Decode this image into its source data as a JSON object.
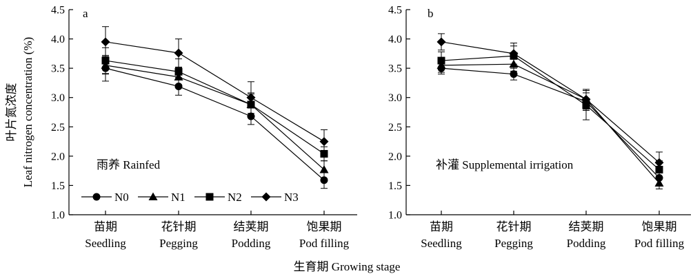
{
  "chart_data": [
    {
      "type": "line",
      "panel_label": "a",
      "annotation": "雨养 Rainfed",
      "categories": [
        "苗期\nSeedling",
        "花针期\nPegging",
        "结荚期\nPodding",
        "饱果期\nPod filling"
      ],
      "ylabel_cn": "叶片氮浓度",
      "ylabel_en": "Leaf nitrogen concentration (%)",
      "ylim": [
        1.0,
        4.5
      ],
      "yticks": [
        "1.0",
        "1.5",
        "2.0",
        "2.5",
        "3.0",
        "3.5",
        "4.0",
        "4.5"
      ],
      "series": [
        {
          "name": "N0",
          "marker": "circle",
          "values": [
            3.5,
            3.19,
            2.68,
            1.59
          ],
          "err": [
            0.22,
            0.15,
            0.14,
            0.14
          ]
        },
        {
          "name": "N1",
          "marker": "triangle",
          "values": [
            3.55,
            3.35,
            2.88,
            1.77
          ],
          "err": [
            0.15,
            0.16,
            0.18,
            0.15
          ]
        },
        {
          "name": "N2",
          "marker": "square",
          "values": [
            3.63,
            3.44,
            2.88,
            2.04
          ],
          "err": [
            0.22,
            0.22,
            0.2,
            0.12
          ]
        },
        {
          "name": "N3",
          "marker": "diamond",
          "values": [
            3.95,
            3.76,
            3.0,
            2.25
          ],
          "err": [
            0.26,
            0.24,
            0.27,
            0.2
          ]
        }
      ]
    },
    {
      "type": "line",
      "panel_label": "b",
      "annotation": "补灌 Supplemental irrigation",
      "categories": [
        "苗期\nSeedling",
        "花针期\nPegging",
        "结荚期\nPodding",
        "饱果期\nPod filling"
      ],
      "ylim": [
        1.0,
        4.5
      ],
      "yticks": [
        "1.0",
        "1.5",
        "2.0",
        "2.5",
        "3.0",
        "3.5",
        "4.0",
        "4.5"
      ],
      "series": [
        {
          "name": "N0",
          "marker": "circle",
          "values": [
            3.5,
            3.4,
            2.93,
            1.63
          ],
          "err": [
            0.1,
            0.1,
            0.15,
            0.12
          ]
        },
        {
          "name": "N1",
          "marker": "triangle",
          "values": [
            3.55,
            3.57,
            2.97,
            1.54
          ],
          "err": [
            0.12,
            0.12,
            0.15,
            0.1
          ]
        },
        {
          "name": "N2",
          "marker": "square",
          "values": [
            3.63,
            3.71,
            2.87,
            1.77
          ],
          "err": [
            0.15,
            0.17,
            0.25,
            0.15
          ]
        },
        {
          "name": "N3",
          "marker": "diamond",
          "values": [
            3.95,
            3.75,
            2.97,
            1.89
          ],
          "err": [
            0.14,
            0.18,
            0.17,
            0.18
          ]
        }
      ]
    }
  ],
  "xlabel": "生育期 Growing stage"
}
